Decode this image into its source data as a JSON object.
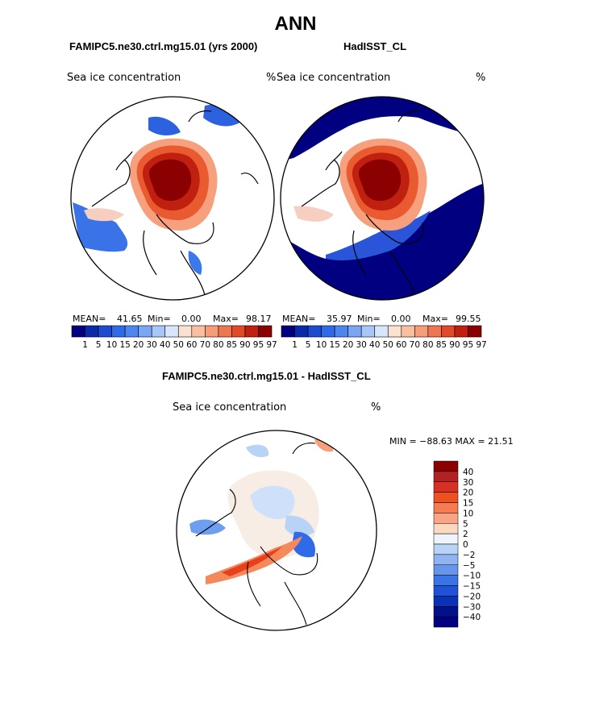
{
  "page": {
    "title": "ANN",
    "left_subtitle": "FAMIPC5.ne30.ctrl.mg15.01 (yrs 2000)",
    "right_subtitle": "HadISST_CL",
    "diff_subtitle": "FAMIPC5.ne30.ctrl.mg15.01 - HadISST_CL"
  },
  "colors": {
    "positive_dark": "#8b0000",
    "positive_mid": "#e8401a",
    "positive_light": "#fbd8c0",
    "neutral": "#f7ede4",
    "negative_light": "#b9d3f7",
    "negative_mid": "#2f6be8",
    "negative_dark": "#000080"
  },
  "chart_data": [
    {
      "type": "heatmap",
      "projection": "north polar stereographic",
      "variable": "Sea ice concentration",
      "units": "%",
      "mean_label": "MEAN=",
      "mean": "41.65",
      "min_label": "Min=",
      "min": "0.00",
      "max_label": "Max=",
      "max": "98.17",
      "colorbar_ticks": [
        "1",
        "5",
        "10",
        "15",
        "20",
        "30",
        "40",
        "50",
        "60",
        "70",
        "80",
        "85",
        "90",
        "95",
        "97"
      ]
    },
    {
      "type": "heatmap",
      "projection": "north polar stereographic",
      "variable": "Sea ice concentration",
      "units": "%",
      "mean_label": "MEAN=",
      "mean": "35.97",
      "min_label": "Min=",
      "min": "0.00",
      "max_label": "Max=",
      "max": "99.55",
      "colorbar_ticks": [
        "1",
        "5",
        "10",
        "15",
        "20",
        "30",
        "40",
        "50",
        "60",
        "70",
        "80",
        "85",
        "90",
        "95",
        "97"
      ]
    },
    {
      "type": "heatmap",
      "projection": "north polar stereographic",
      "variable": "Sea ice concentration",
      "units": "%",
      "min_max_text": "MIN = −88.63 MAX =  21.51",
      "min": -88.63,
      "max": 21.51,
      "colorbar_ticks": [
        "40",
        "30",
        "20",
        "15",
        "10",
        "5",
        "2",
        "0",
        "−2",
        "−5",
        "−10",
        "−15",
        "−20",
        "−30",
        "−40"
      ]
    }
  ]
}
